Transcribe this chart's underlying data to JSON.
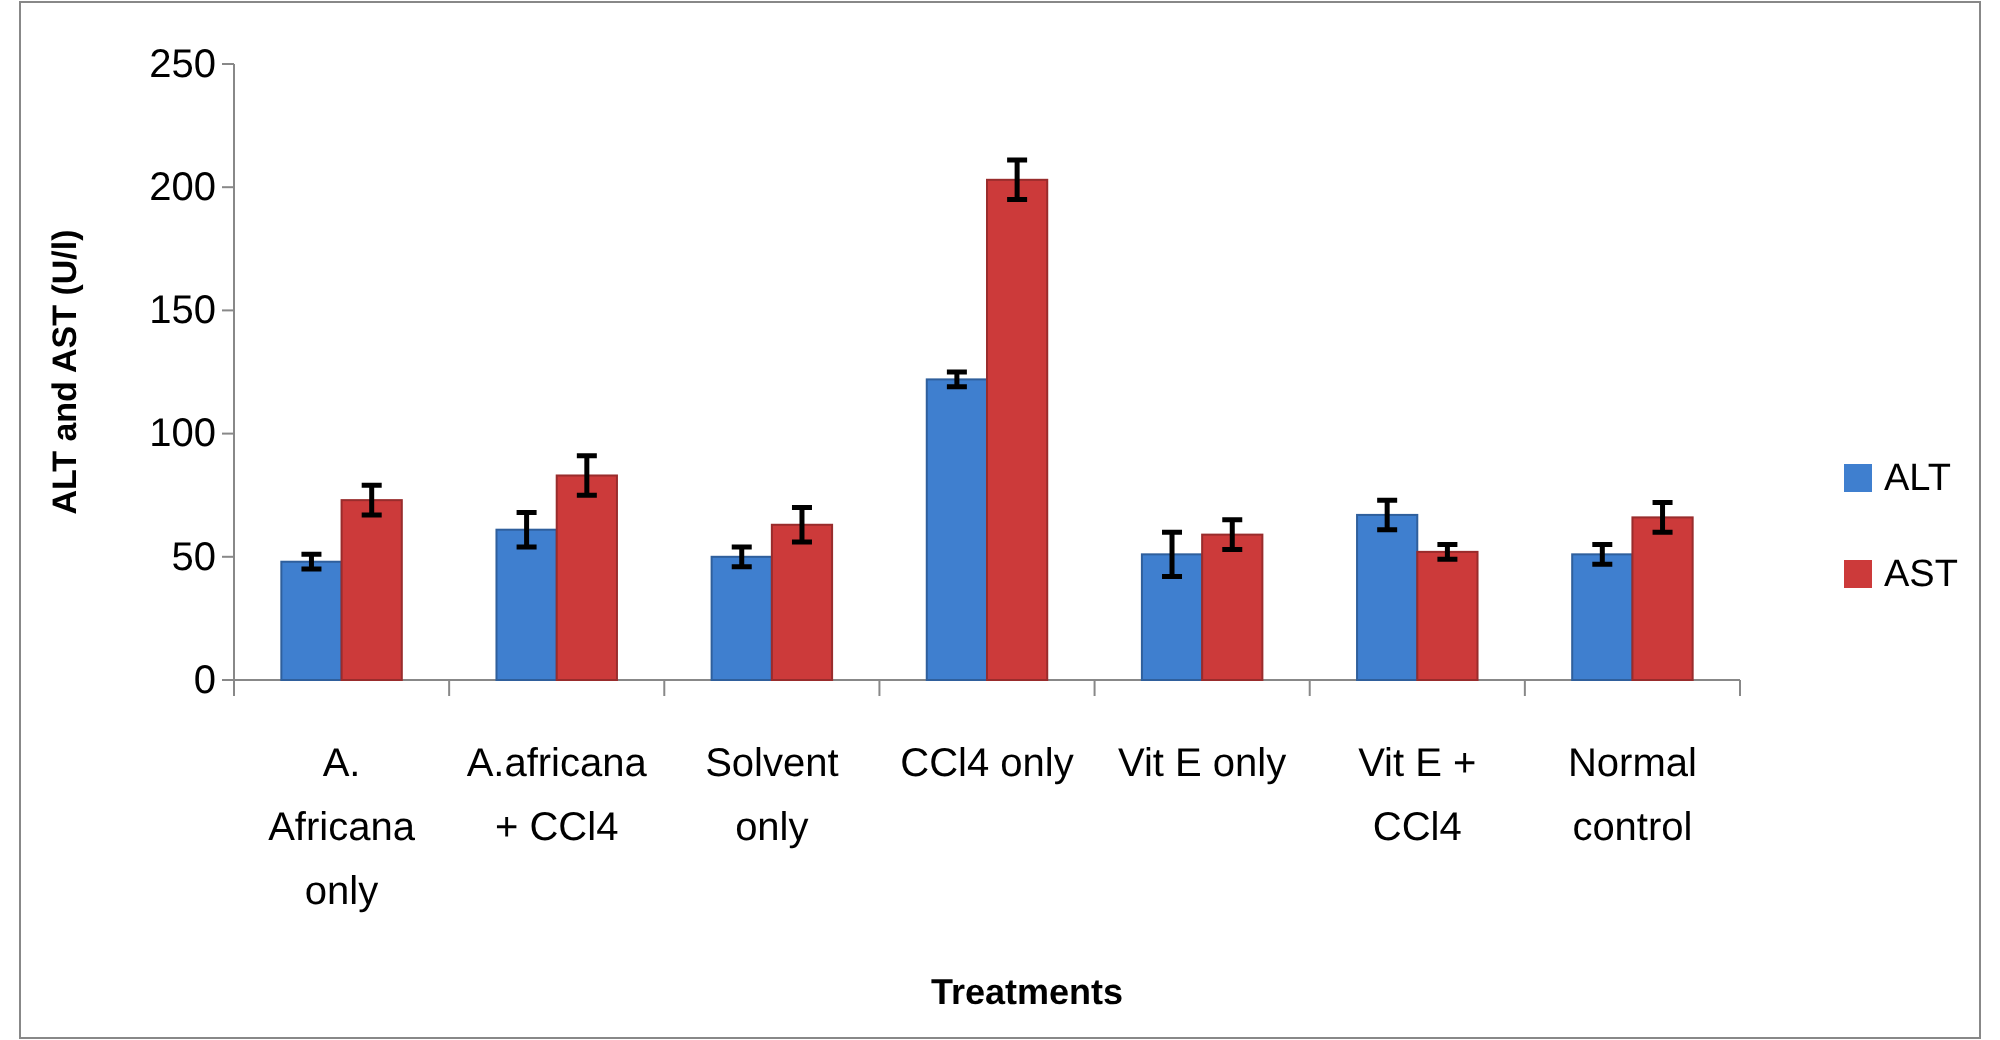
{
  "chart_data": {
    "type": "bar",
    "xlabel": "Treatments",
    "ylabel": "ALT and AST (U/l)",
    "categories": [
      "A. Africana only",
      "A.africana + CCl4",
      "Solvent only",
      "CCl4 only",
      "Vit E only",
      "Vit E + CCl4",
      "Normal control"
    ],
    "series": [
      {
        "name": "ALT",
        "color": "#3f7fcf",
        "values": [
          48,
          61,
          50,
          122,
          51,
          67,
          51
        ],
        "errors": [
          3,
          7,
          4,
          3,
          9,
          6,
          4
        ]
      },
      {
        "name": "AST",
        "color": "#cc3a3a",
        "values": [
          73,
          83,
          63,
          203,
          59,
          52,
          66
        ],
        "errors": [
          6,
          8,
          7,
          8,
          6,
          3,
          6
        ]
      }
    ],
    "ylim": [
      0,
      250
    ],
    "yticks": [
      0,
      50,
      100,
      150,
      200,
      250
    ],
    "grid": false,
    "legend": "right"
  }
}
